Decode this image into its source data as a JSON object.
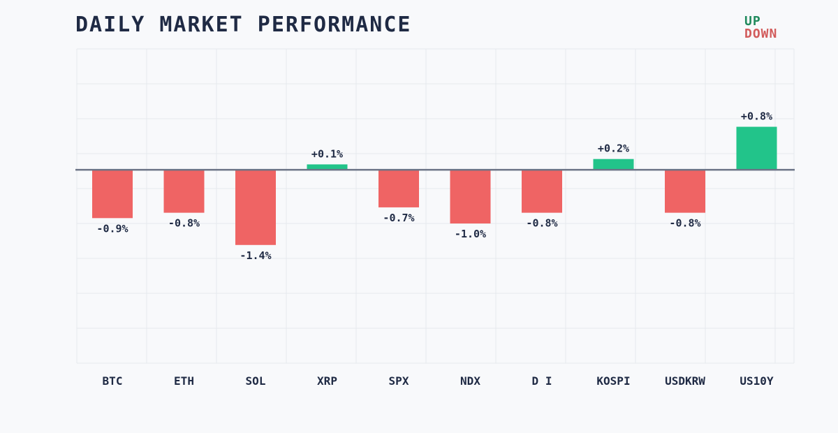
{
  "chart_data": {
    "type": "bar",
    "title": "DAILY MARKET PERFORMANCE",
    "categories": [
      "BTC",
      "ETH",
      "SOL",
      "XRP",
      "SPX",
      "NDX",
      "D I",
      "KOSPI",
      "USDKRW",
      "US10Y"
    ],
    "values": [
      -0.9,
      -0.8,
      -1.4,
      0.1,
      -0.7,
      -1.0,
      -0.8,
      0.2,
      -0.8,
      0.8
    ],
    "data_labels": [
      "-0.9%",
      "-0.8%",
      "-1.4%",
      "+0.1%",
      "-0.7%",
      "-1.0%",
      "-0.8%",
      "+0.2%",
      "-0.8%",
      "+0.8%"
    ],
    "ylim": [
      -3.6,
      2.25
    ],
    "grid": true,
    "legend": {
      "position": "top-right",
      "entries": [
        "UP",
        "DOWN"
      ]
    },
    "colors": {
      "up": "#22c48a",
      "down": "#ef6464",
      "zero_line": "#6b7386",
      "grid": "#e6e9ee"
    }
  }
}
